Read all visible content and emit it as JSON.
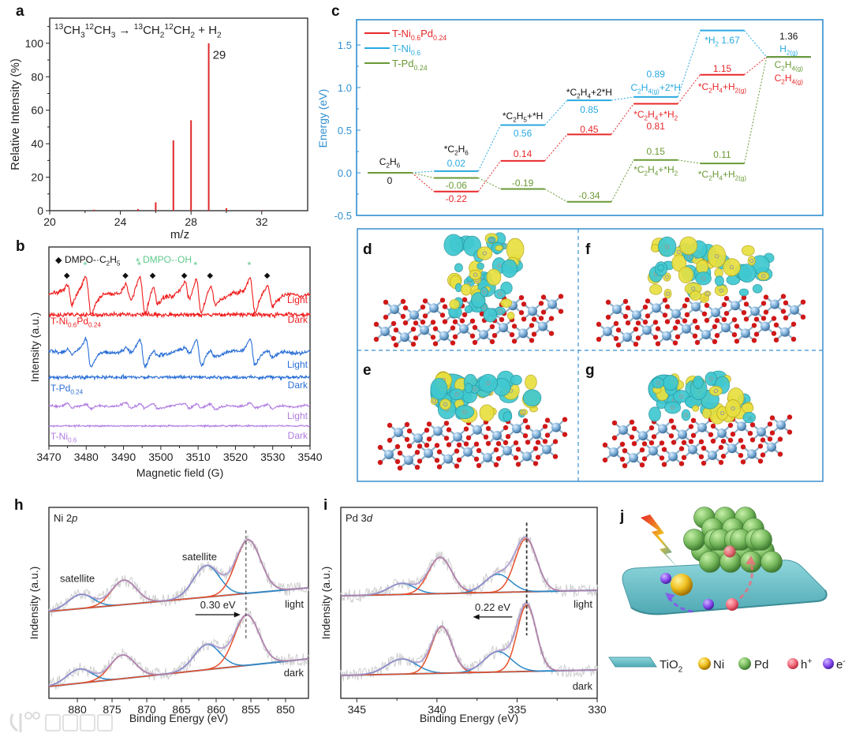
{
  "panels": {
    "a": "a",
    "b": "b",
    "c": "c",
    "d": "d",
    "e": "e",
    "f": "f",
    "g": "g",
    "h": "h",
    "i": "i",
    "j": "j"
  },
  "chart_data": [
    {
      "id": "a",
      "type": "bar",
      "title": "^{13}CH_{3}^{12}CH_{3} → ^{13}CH_{2}^{12}CH_{2} + H_{2}",
      "xlabel": "m/z",
      "ylabel": "Relative Intensity (%)",
      "xlim": [
        20,
        34.6
      ],
      "ylim": [
        0,
        115
      ],
      "xticks": [
        20,
        24,
        28,
        32
      ],
      "yticks": [
        0,
        20,
        40,
        60,
        80,
        100
      ],
      "x": [
        22.5,
        25,
        26,
        27,
        28,
        29,
        30,
        32
      ],
      "values": [
        0.6,
        1,
        5,
        42,
        54,
        100,
        1.5,
        0.3
      ],
      "annotations": [
        {
          "text": "29",
          "x": 29,
          "y": 93
        }
      ],
      "color": "#e0282a"
    },
    {
      "id": "b",
      "type": "line",
      "xlabel": "Magnetic field (G)",
      "ylabel": "Intensity (a.u.)",
      "xlim": [
        3470,
        3540
      ],
      "ylim": [
        0,
        100
      ],
      "xticks": [
        3470,
        3480,
        3490,
        3500,
        3510,
        3520,
        3530,
        3540
      ],
      "legend": [
        {
          "symbol": "◆",
          "label": "DMPO-·C_{2}H_{5}",
          "color": "#111111"
        },
        {
          "symbol": "*",
          "label": "DMPO-·OH",
          "color": "#5cc98a"
        }
      ],
      "markers": {
        "c2h5": [
          3474.8,
          3490.5,
          3497.8,
          3506.3,
          3513.2,
          3528.5
        ],
        "oh": [
          3479.7,
          3494.2,
          3509.3,
          3523.7
        ]
      },
      "series": [
        {
          "sample": "T-Ni_{0.6}Pd_{0.24}",
          "color": "#f01c1c",
          "light": {
            "label": "Light",
            "offset": 76,
            "c2h5_amp": 5,
            "oh_amp": 9,
            "noise": 1.1
          },
          "dark": {
            "label": "Dark",
            "offset": 66,
            "noise": 1.1
          }
        },
        {
          "sample": "T-Pd_{0.24}",
          "color": "#2a6fd6",
          "light": {
            "label": "Light",
            "offset": 47,
            "c2h5_amp": 1.5,
            "oh_amp": 7,
            "noise": 0.9
          },
          "dark": {
            "label": "Dark",
            "offset": 34.5,
            "noise": 0.9
          }
        },
        {
          "sample": "T-Ni_{0.6}",
          "color": "#b07ce0",
          "light": {
            "label": "Light",
            "offset": 20,
            "c2h5_amp": 1.3,
            "oh_amp": 1.3,
            "noise": 0.55
          },
          "dark": {
            "label": "Dark",
            "offset": 10,
            "noise": 0.4
          }
        }
      ]
    },
    {
      "id": "c",
      "type": "line",
      "subtype": "energy-profile",
      "ylabel": "Energy (eV)",
      "ylim": [
        -0.5,
        1.796
      ],
      "yticks": [
        -0.5,
        0.0,
        0.5,
        1.0,
        1.5
      ],
      "ytick_labels": [
        "-0.5",
        "0.0",
        "0.5",
        "1.0",
        "1.5"
      ],
      "steps": [
        "C2H6",
        "*C2H6",
        "*C2H5+*H",
        "*C2H4+2*H",
        "C2H4(g)+2*H / *C2H4+*H2",
        "*H2 / *C2H4+H2(g)",
        "C2H4(g)+H2(g)"
      ],
      "series": [
        {
          "name": "T-Ni_{0.6}Pd_{0.24}",
          "color": "#e8282a",
          "values": [
            0,
            -0.22,
            0.14,
            0.45,
            0.81,
            1.15,
            1.36
          ]
        },
        {
          "name": "T-Ni_{0.6}",
          "color": "#29a9e0",
          "values": [
            0,
            0.02,
            0.56,
            0.85,
            0.89,
            1.67,
            1.36
          ]
        },
        {
          "name": "T-Pd_{0.24}",
          "color": "#6a9a35",
          "values": [
            0,
            -0.06,
            -0.19,
            -0.34,
            0.15,
            0.11,
            1.36
          ]
        }
      ],
      "legend_position": "top-left",
      "annotations": [
        {
          "text": "C_{2}H_{6}",
          "color": "#111111"
        },
        {
          "text": "0",
          "color": "#111111"
        },
        {
          "text": "*C_{2}H_{6}",
          "color": "#111111"
        },
        {
          "text": "0.02",
          "color": "#29a9e0"
        },
        {
          "text": "-0.06",
          "color": "#6a9a35"
        },
        {
          "text": "-0.22",
          "color": "#e8282a"
        },
        {
          "text": "*C_{2}H_{5}+*H",
          "color": "#111111"
        },
        {
          "text": "0.56",
          "color": "#29a9e0"
        },
        {
          "text": "0.14",
          "color": "#e8282a"
        },
        {
          "text": "-0.19",
          "color": "#6a9a35"
        },
        {
          "text": "*C_{2}H_{4}+2*H",
          "color": "#111111"
        },
        {
          "text": "0.85",
          "color": "#29a9e0"
        },
        {
          "text": "0.45",
          "color": "#e8282a"
        },
        {
          "text": "-0.34",
          "color": "#6a9a35"
        },
        {
          "text": "0.89",
          "color": "#29a9e0"
        },
        {
          "text": "C_{2}H_{4(g)}+2*H",
          "color": "#29a9e0"
        },
        {
          "text": "*C_{2}H_{4}+*H_{2}",
          "color": "#e8282a"
        },
        {
          "text": "0.81",
          "color": "#e8282a"
        },
        {
          "text": "0.15",
          "color": "#6a9a35"
        },
        {
          "text": "*C_{2}H_{4}+*H_{2}",
          "color": "#6a9a35"
        },
        {
          "text": "*H_{2}  1.67",
          "color": "#29a9e0"
        },
        {
          "text": "1.15",
          "color": "#e8282a"
        },
        {
          "text": "*C_{2}H_{4}+H_{2(g)}",
          "color": "#e8282a"
        },
        {
          "text": "0.11",
          "color": "#6a9a35"
        },
        {
          "text": "*C_{2}H_{4}+H_{2(g)}",
          "color": "#6a9a35"
        },
        {
          "text": "1.36",
          "color": "#111111"
        },
        {
          "text": "H_{2(g)}",
          "color": "#29a9e0"
        },
        {
          "text": "C_{2}H_{4(g)}",
          "color": "#6a9a35"
        },
        {
          "text": "C_{2}H_{4(g)}",
          "color": "#e8282a"
        }
      ]
    },
    {
      "id": "h",
      "type": "line",
      "title": "Ni 2~{p}",
      "xlabel": "Binding Energy (eV)",
      "ylabel": "Indensity (a.u.)",
      "xlim": [
        884.1,
        846.7
      ],
      "ylim": [
        0,
        100
      ],
      "xticks": [
        880,
        875,
        870,
        865,
        860,
        855,
        850
      ],
      "states": [
        {
          "label": "light",
          "baseline": [
            45.5,
            57.9
          ],
          "peaks": [
            {
              "center": 879.5,
              "height": 7.4,
              "fwhm": 4.2,
              "kind": "satellite"
            },
            {
              "center": 873.3,
              "height": 12.8,
              "fwhm": 4.2,
              "kind": "main"
            },
            {
              "center": 861.4,
              "height": 16.5,
              "fwhm": 4.4,
              "kind": "satellite"
            },
            {
              "center": 855.4,
              "height": 28,
              "fwhm": 4.2,
              "kind": "main"
            }
          ]
        },
        {
          "label": "dark",
          "baseline": [
            6.2,
            20.7
          ],
          "peaks": [
            {
              "center": 879.7,
              "height": 7.4,
              "fwhm": 4.2,
              "kind": "satellite"
            },
            {
              "center": 873.5,
              "height": 12.4,
              "fwhm": 4.2,
              "kind": "main"
            },
            {
              "center": 861.3,
              "height": 13.2,
              "fwhm": 4.4,
              "kind": "satellite"
            },
            {
              "center": 855.6,
              "height": 26.4,
              "fwhm": 4.2,
              "kind": "main"
            }
          ]
        }
      ],
      "reference_line": 855.7,
      "shift": {
        "text": "0.30 eV",
        "from": 863,
        "to": 856.5,
        "y": 43.8
      },
      "annotations": [
        {
          "text": "satellite",
          "x": 880,
          "y": 61
        },
        {
          "text": "satellite",
          "x": 862.4,
          "y": 72.3
        }
      ]
    },
    {
      "id": "i",
      "type": "line",
      "title": "Pd 3~{d}",
      "xlabel": "Binding Energy (eV)",
      "ylabel": "Indensity (a.u.)",
      "xlim": [
        346.0,
        330
      ],
      "ylim": [
        0,
        100
      ],
      "xticks": [
        345,
        340,
        335,
        330
      ],
      "states": [
        {
          "label": "light",
          "baseline": [
            53.7,
            56.6
          ],
          "peaks": [
            {
              "center": 342.2,
              "height": 5.8,
              "fwhm": 1.9,
              "kind": "satellite"
            },
            {
              "center": 339.8,
              "height": 19,
              "fwhm": 1.7,
              "kind": "main"
            },
            {
              "center": 336.2,
              "height": 9.5,
              "fwhm": 1.9,
              "kind": "satellite"
            },
            {
              "center": 334.45,
              "height": 27.7,
              "fwhm": 1.6,
              "kind": "main"
            }
          ]
        },
        {
          "label": "dark",
          "baseline": [
            12,
            14.9
          ],
          "peaks": [
            {
              "center": 342.2,
              "height": 7.9,
              "fwhm": 2.2,
              "kind": "satellite"
            },
            {
              "center": 339.7,
              "height": 24.4,
              "fwhm": 1.5,
              "kind": "main"
            },
            {
              "center": 336.2,
              "height": 10.7,
              "fwhm": 2.0,
              "kind": "satellite"
            },
            {
              "center": 334.4,
              "height": 34.7,
              "fwhm": 1.4,
              "kind": "main"
            }
          ]
        }
      ],
      "reference_line": 334.4,
      "shift": {
        "text": "0.22 eV",
        "from": 335.3,
        "to": 337.75,
        "y": 42.6
      }
    }
  ],
  "schematic": {
    "legend": [
      {
        "label": "TiO_{2}",
        "color": "#6cc6cf"
      },
      {
        "label": "Ni",
        "color": "#f0c020"
      },
      {
        "label": "Pd",
        "color": "#7cc064"
      },
      {
        "label": "h^{+}",
        "color": "#f06a7a"
      },
      {
        "label": "e^{-}",
        "color": "#8a4ef0"
      }
    ]
  },
  "watermark": {
    "text": "大数跨境"
  }
}
